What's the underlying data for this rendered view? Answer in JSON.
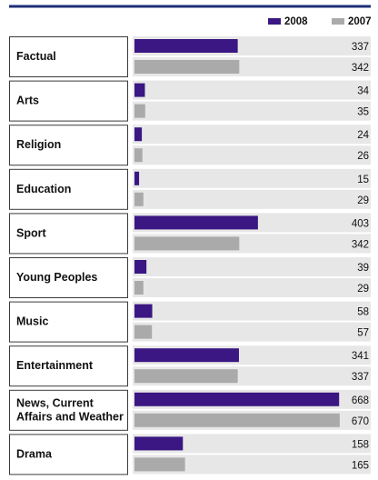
{
  "colors": {
    "s2008": "#3a1782",
    "s2007": "#aaaaaa",
    "row_bg": "#e7e7e7",
    "border": "#3a3a3a",
    "top_rule": "#1c2f78"
  },
  "chart_data": {
    "type": "bar",
    "orientation": "horizontal",
    "categories": [
      "Factual",
      "Arts",
      "Religion",
      "Education",
      "Sport",
      "Young Peoples",
      "Music",
      "Entertainment",
      "News, Current Affairs and Weather",
      "Drama"
    ],
    "category_lines": [
      [
        "Factual"
      ],
      [
        "Arts"
      ],
      [
        "Religion"
      ],
      [
        "Education"
      ],
      [
        "Sport"
      ],
      [
        "Young Peoples"
      ],
      [
        "Music"
      ],
      [
        "Entertainment"
      ],
      [
        "News, Current",
        "Affairs and Weather"
      ],
      [
        "Drama"
      ]
    ],
    "series": [
      {
        "name": "2008",
        "values": [
          337,
          34,
          24,
          15,
          403,
          39,
          58,
          341,
          668,
          158
        ]
      },
      {
        "name": "2007",
        "values": [
          342,
          35,
          26,
          29,
          342,
          29,
          57,
          337,
          670,
          165
        ]
      }
    ],
    "xlim": [
      0,
      700
    ],
    "legend_position": "top-right",
    "grid": false
  }
}
